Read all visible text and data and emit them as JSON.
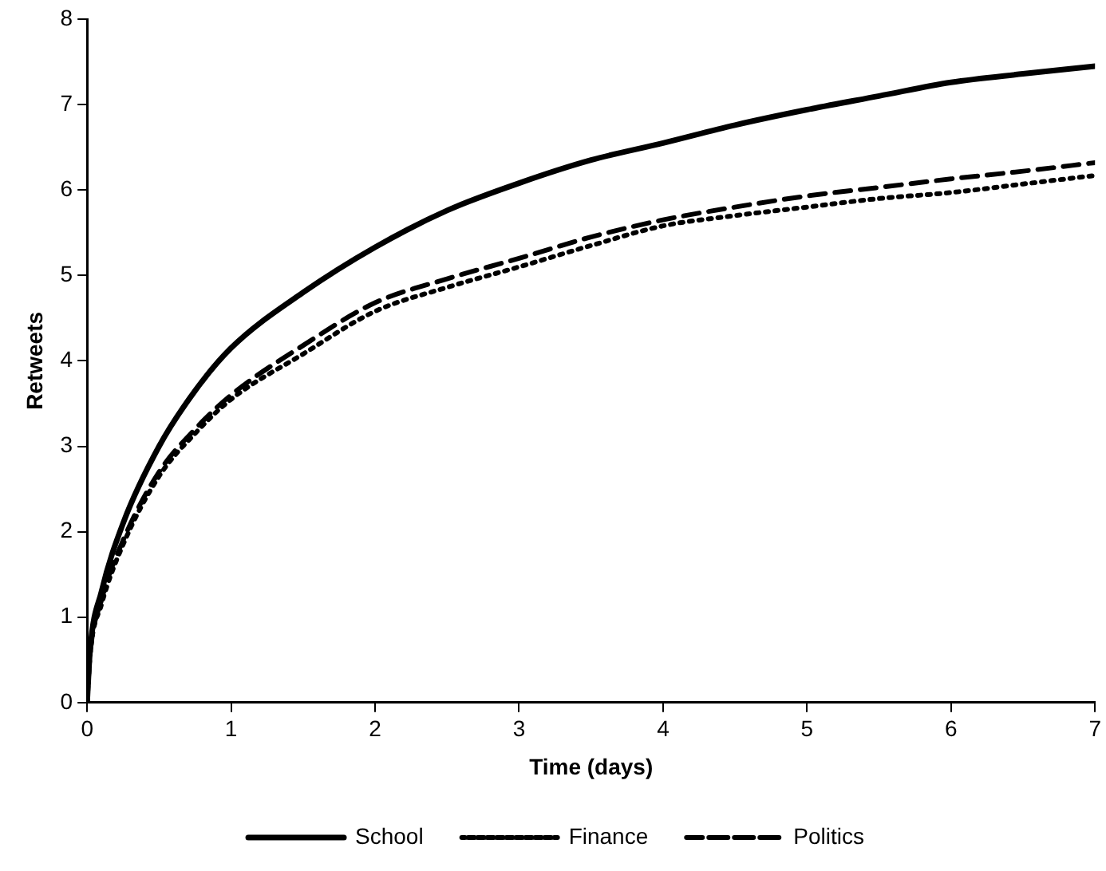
{
  "chart_data": {
    "type": "line",
    "xlabel": "Time (days)",
    "ylabel": "Retweets",
    "x": [
      0,
      0.02,
      0.1,
      0.25,
      0.5,
      0.75,
      1,
      1.5,
      2,
      2.5,
      3,
      3.5,
      4,
      4.5,
      5,
      5.5,
      6,
      6.5,
      7
    ],
    "series": [
      {
        "name": "School",
        "color": "#000000",
        "line_style": "solid",
        "values": [
          0,
          0.6,
          1.3,
          2.1,
          3.0,
          3.65,
          4.15,
          4.8,
          5.33,
          5.76,
          6.08,
          6.35,
          6.55,
          6.76,
          6.94,
          7.1,
          7.26,
          7.36,
          7.45
        ]
      },
      {
        "name": "Finance",
        "color": "#000000",
        "line_style": "dotted",
        "values": [
          0,
          0.55,
          1.15,
          1.85,
          2.65,
          3.15,
          3.55,
          4.08,
          4.58,
          4.86,
          5.1,
          5.35,
          5.58,
          5.7,
          5.8,
          5.9,
          5.97,
          6.07,
          6.17
        ]
      },
      {
        "name": "Politics",
        "color": "#000000",
        "line_style": "dashed",
        "values": [
          0,
          0.55,
          1.2,
          1.9,
          2.7,
          3.2,
          3.6,
          4.18,
          4.68,
          4.96,
          5.2,
          5.45,
          5.65,
          5.8,
          5.93,
          6.03,
          6.13,
          6.22,
          6.32
        ]
      }
    ],
    "xlim": [
      0,
      7
    ],
    "xticks": [
      0,
      1,
      2,
      3,
      4,
      5,
      6,
      7
    ],
    "ylim": [
      0,
      8
    ],
    "yticks": [
      0,
      1,
      2,
      3,
      4,
      5,
      6,
      7,
      8
    ],
    "grid": false,
    "legend": "bottom",
    "marker": "none"
  }
}
